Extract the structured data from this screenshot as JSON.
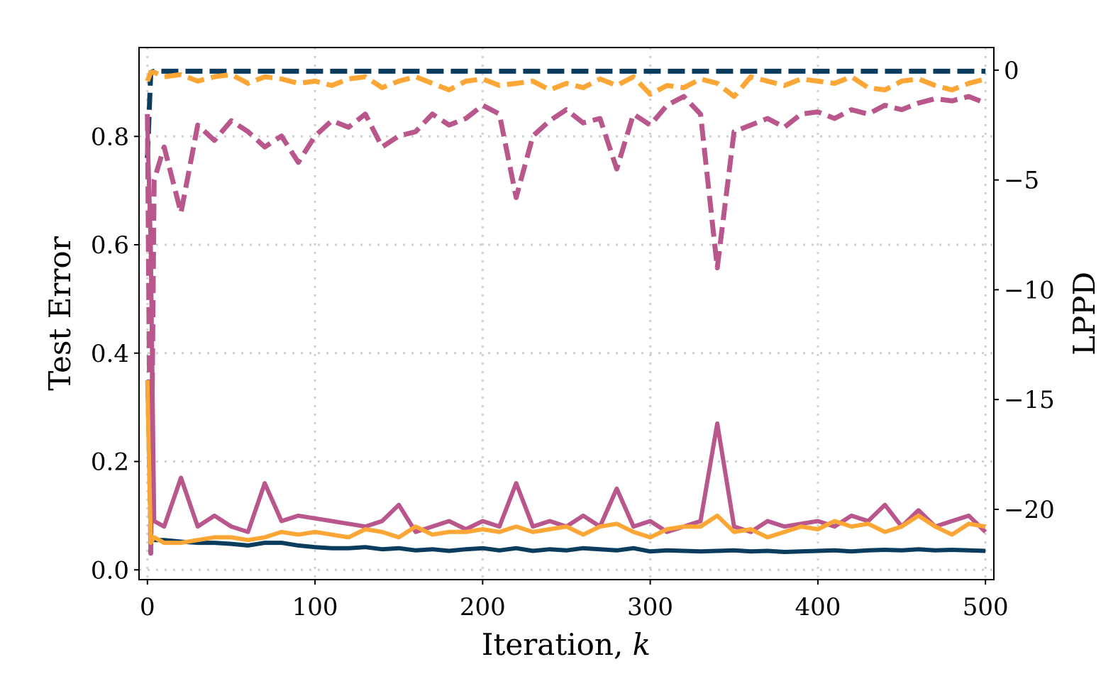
{
  "chart_data": {
    "type": "line",
    "xlabel": "Iteration, k",
    "ylabel": "Test Error",
    "ylabel_right": "LPPD",
    "xlim": [
      -5,
      505
    ],
    "ylim": [
      -0.018,
      0.964
    ],
    "ylim_right": [
      -23.2,
      1.03
    ],
    "xticks": [
      "0",
      "100",
      "200",
      "300",
      "400",
      "500"
    ],
    "yticks": [
      "0.0",
      "0.2",
      "0.4",
      "0.6",
      "0.8"
    ],
    "yticks_right": [
      "0",
      "−5",
      "−10",
      "−15",
      "−20"
    ],
    "grid": true,
    "colors": {
      "navy": "#0b3c5d",
      "magenta": "#b9568b",
      "orange": "#fca636"
    },
    "x": [
      0,
      2,
      4,
      10,
      20,
      30,
      40,
      50,
      60,
      70,
      80,
      90,
      100,
      110,
      120,
      130,
      140,
      150,
      160,
      170,
      180,
      190,
      200,
      210,
      220,
      230,
      240,
      250,
      260,
      270,
      280,
      290,
      300,
      310,
      320,
      330,
      340,
      350,
      360,
      370,
      380,
      390,
      400,
      410,
      420,
      430,
      440,
      450,
      460,
      470,
      480,
      490,
      500
    ],
    "series": [
      {
        "color": "navy",
        "axis": "left",
        "style": "solid",
        "values": [
          0.35,
          0.06,
          0.055,
          0.055,
          0.052,
          0.05,
          0.05,
          0.048,
          0.045,
          0.05,
          0.05,
          0.045,
          0.042,
          0.04,
          0.04,
          0.042,
          0.038,
          0.04,
          0.036,
          0.038,
          0.035,
          0.038,
          0.04,
          0.036,
          0.04,
          0.035,
          0.038,
          0.036,
          0.04,
          0.038,
          0.036,
          0.04,
          0.034,
          0.036,
          0.035,
          0.034,
          0.035,
          0.036,
          0.034,
          0.035,
          0.033,
          0.034,
          0.035,
          0.036,
          0.034,
          0.036,
          0.037,
          0.036,
          0.038,
          0.036,
          0.037,
          0.036,
          0.035
        ]
      },
      {
        "color": "magenta",
        "axis": "left",
        "style": "solid",
        "values": [
          0.82,
          0.6,
          0.09,
          0.08,
          0.17,
          0.08,
          0.1,
          0.08,
          0.07,
          0.16,
          0.09,
          0.1,
          0.095,
          0.09,
          0.085,
          0.08,
          0.09,
          0.12,
          0.07,
          0.08,
          0.09,
          0.075,
          0.09,
          0.08,
          0.16,
          0.08,
          0.09,
          0.08,
          0.1,
          0.08,
          0.15,
          0.08,
          0.09,
          0.07,
          0.08,
          0.09,
          0.27,
          0.08,
          0.07,
          0.09,
          0.08,
          0.085,
          0.09,
          0.08,
          0.1,
          0.09,
          0.12,
          0.08,
          0.11,
          0.08,
          0.09,
          0.1,
          0.07
        ]
      },
      {
        "color": "orange",
        "axis": "left",
        "style": "solid",
        "values": [
          0.35,
          0.05,
          0.06,
          0.05,
          0.05,
          0.055,
          0.06,
          0.06,
          0.055,
          0.06,
          0.07,
          0.065,
          0.07,
          0.065,
          0.06,
          0.075,
          0.07,
          0.06,
          0.08,
          0.065,
          0.07,
          0.07,
          0.075,
          0.07,
          0.08,
          0.07,
          0.075,
          0.08,
          0.065,
          0.08,
          0.085,
          0.07,
          0.06,
          0.075,
          0.08,
          0.08,
          0.1,
          0.07,
          0.075,
          0.06,
          0.07,
          0.08,
          0.075,
          0.09,
          0.08,
          0.085,
          0.07,
          0.08,
          0.1,
          0.08,
          0.065,
          0.085,
          0.08
        ]
      },
      {
        "color": "navy",
        "axis": "right",
        "style": "dashed",
        "values": [
          -4,
          -0.1,
          -0.05,
          -0.05,
          -0.05,
          -0.05,
          -0.05,
          -0.05,
          -0.05,
          -0.05,
          -0.05,
          -0.05,
          -0.05,
          -0.05,
          -0.05,
          -0.05,
          -0.05,
          -0.05,
          -0.05,
          -0.05,
          -0.05,
          -0.05,
          -0.05,
          -0.05,
          -0.05,
          -0.05,
          -0.05,
          -0.05,
          -0.05,
          -0.05,
          -0.05,
          -0.05,
          -0.05,
          -0.05,
          -0.05,
          -0.05,
          -0.05,
          -0.05,
          -0.05,
          -0.05,
          -0.05,
          -0.05,
          -0.05,
          -0.05,
          -0.05,
          -0.05,
          -0.05,
          -0.05,
          -0.05,
          -0.05,
          -0.05,
          -0.05,
          -0.05
        ]
      },
      {
        "color": "magenta",
        "axis": "right",
        "style": "dashed",
        "values": [
          -2,
          -22,
          -5,
          -3.5,
          -6.5,
          -2.5,
          -3.2,
          -2.3,
          -2.8,
          -3.5,
          -3,
          -4.2,
          -3,
          -2.3,
          -2.6,
          -2,
          -3.5,
          -3,
          -2.8,
          -2,
          -2.5,
          -2.2,
          -1.6,
          -2,
          -5.8,
          -3,
          -2.3,
          -1.8,
          -2.4,
          -2.2,
          -4.5,
          -2,
          -2.5,
          -1.6,
          -1.2,
          -2,
          -9,
          -2.8,
          -2.5,
          -2.2,
          -2.6,
          -2,
          -1.9,
          -2.2,
          -1.8,
          -2,
          -1.6,
          -1.8,
          -1.5,
          -1.3,
          -1.4,
          -1.2,
          -1.5
        ]
      },
      {
        "color": "orange",
        "axis": "right",
        "style": "dashed",
        "values": [
          -0.5,
          -0.1,
          -0.1,
          -0.3,
          -0.2,
          -0.5,
          -0.3,
          -0.2,
          -0.6,
          -0.3,
          -0.4,
          -0.6,
          -0.5,
          -0.7,
          -0.4,
          -0.3,
          -0.8,
          -0.5,
          -0.3,
          -0.6,
          -0.9,
          -0.5,
          -0.4,
          -0.7,
          -0.6,
          -0.5,
          -0.9,
          -0.6,
          -0.8,
          -0.4,
          -0.7,
          -0.3,
          -1.1,
          -0.7,
          -0.8,
          -0.4,
          -0.6,
          -1.2,
          -0.3,
          -0.5,
          -0.7,
          -0.4,
          -0.5,
          -0.6,
          -0.3,
          -0.8,
          -0.9,
          -0.5,
          -0.4,
          -0.7,
          -0.9,
          -0.6,
          -0.4
        ]
      }
    ]
  }
}
